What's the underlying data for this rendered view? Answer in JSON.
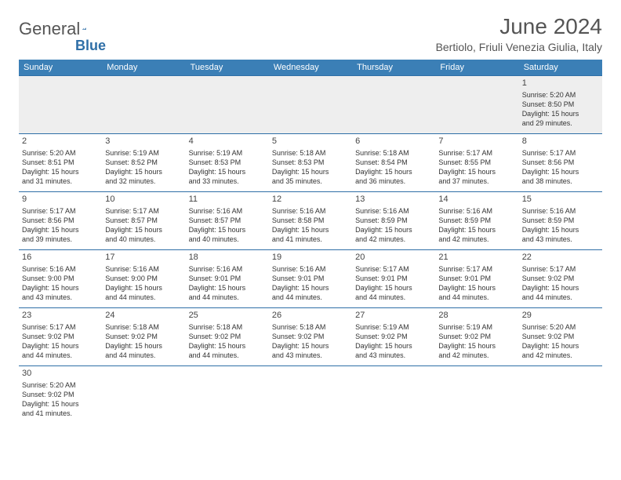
{
  "header": {
    "logo_part1": "General",
    "logo_part2": "Blue",
    "month_title": "June 2024",
    "location": "Bertiolo, Friuli Venezia Giulia, Italy"
  },
  "colors": {
    "header_bg": "#3b7fb6",
    "border": "#2f6fa7",
    "empty_bg": "#eeeeee",
    "text": "#333333"
  },
  "day_headers": [
    "Sunday",
    "Monday",
    "Tuesday",
    "Wednesday",
    "Thursday",
    "Friday",
    "Saturday"
  ],
  "weeks": [
    [
      null,
      null,
      null,
      null,
      null,
      null,
      {
        "d": "1",
        "sr": "Sunrise: 5:20 AM",
        "ss": "Sunset: 8:50 PM",
        "dl1": "Daylight: 15 hours",
        "dl2": "and 29 minutes."
      }
    ],
    [
      {
        "d": "2",
        "sr": "Sunrise: 5:20 AM",
        "ss": "Sunset: 8:51 PM",
        "dl1": "Daylight: 15 hours",
        "dl2": "and 31 minutes."
      },
      {
        "d": "3",
        "sr": "Sunrise: 5:19 AM",
        "ss": "Sunset: 8:52 PM",
        "dl1": "Daylight: 15 hours",
        "dl2": "and 32 minutes."
      },
      {
        "d": "4",
        "sr": "Sunrise: 5:19 AM",
        "ss": "Sunset: 8:53 PM",
        "dl1": "Daylight: 15 hours",
        "dl2": "and 33 minutes."
      },
      {
        "d": "5",
        "sr": "Sunrise: 5:18 AM",
        "ss": "Sunset: 8:53 PM",
        "dl1": "Daylight: 15 hours",
        "dl2": "and 35 minutes."
      },
      {
        "d": "6",
        "sr": "Sunrise: 5:18 AM",
        "ss": "Sunset: 8:54 PM",
        "dl1": "Daylight: 15 hours",
        "dl2": "and 36 minutes."
      },
      {
        "d": "7",
        "sr": "Sunrise: 5:17 AM",
        "ss": "Sunset: 8:55 PM",
        "dl1": "Daylight: 15 hours",
        "dl2": "and 37 minutes."
      },
      {
        "d": "8",
        "sr": "Sunrise: 5:17 AM",
        "ss": "Sunset: 8:56 PM",
        "dl1": "Daylight: 15 hours",
        "dl2": "and 38 minutes."
      }
    ],
    [
      {
        "d": "9",
        "sr": "Sunrise: 5:17 AM",
        "ss": "Sunset: 8:56 PM",
        "dl1": "Daylight: 15 hours",
        "dl2": "and 39 minutes."
      },
      {
        "d": "10",
        "sr": "Sunrise: 5:17 AM",
        "ss": "Sunset: 8:57 PM",
        "dl1": "Daylight: 15 hours",
        "dl2": "and 40 minutes."
      },
      {
        "d": "11",
        "sr": "Sunrise: 5:16 AM",
        "ss": "Sunset: 8:57 PM",
        "dl1": "Daylight: 15 hours",
        "dl2": "and 40 minutes."
      },
      {
        "d": "12",
        "sr": "Sunrise: 5:16 AM",
        "ss": "Sunset: 8:58 PM",
        "dl1": "Daylight: 15 hours",
        "dl2": "and 41 minutes."
      },
      {
        "d": "13",
        "sr": "Sunrise: 5:16 AM",
        "ss": "Sunset: 8:59 PM",
        "dl1": "Daylight: 15 hours",
        "dl2": "and 42 minutes."
      },
      {
        "d": "14",
        "sr": "Sunrise: 5:16 AM",
        "ss": "Sunset: 8:59 PM",
        "dl1": "Daylight: 15 hours",
        "dl2": "and 42 minutes."
      },
      {
        "d": "15",
        "sr": "Sunrise: 5:16 AM",
        "ss": "Sunset: 8:59 PM",
        "dl1": "Daylight: 15 hours",
        "dl2": "and 43 minutes."
      }
    ],
    [
      {
        "d": "16",
        "sr": "Sunrise: 5:16 AM",
        "ss": "Sunset: 9:00 PM",
        "dl1": "Daylight: 15 hours",
        "dl2": "and 43 minutes."
      },
      {
        "d": "17",
        "sr": "Sunrise: 5:16 AM",
        "ss": "Sunset: 9:00 PM",
        "dl1": "Daylight: 15 hours",
        "dl2": "and 44 minutes."
      },
      {
        "d": "18",
        "sr": "Sunrise: 5:16 AM",
        "ss": "Sunset: 9:01 PM",
        "dl1": "Daylight: 15 hours",
        "dl2": "and 44 minutes."
      },
      {
        "d": "19",
        "sr": "Sunrise: 5:16 AM",
        "ss": "Sunset: 9:01 PM",
        "dl1": "Daylight: 15 hours",
        "dl2": "and 44 minutes."
      },
      {
        "d": "20",
        "sr": "Sunrise: 5:17 AM",
        "ss": "Sunset: 9:01 PM",
        "dl1": "Daylight: 15 hours",
        "dl2": "and 44 minutes."
      },
      {
        "d": "21",
        "sr": "Sunrise: 5:17 AM",
        "ss": "Sunset: 9:01 PM",
        "dl1": "Daylight: 15 hours",
        "dl2": "and 44 minutes."
      },
      {
        "d": "22",
        "sr": "Sunrise: 5:17 AM",
        "ss": "Sunset: 9:02 PM",
        "dl1": "Daylight: 15 hours",
        "dl2": "and 44 minutes."
      }
    ],
    [
      {
        "d": "23",
        "sr": "Sunrise: 5:17 AM",
        "ss": "Sunset: 9:02 PM",
        "dl1": "Daylight: 15 hours",
        "dl2": "and 44 minutes."
      },
      {
        "d": "24",
        "sr": "Sunrise: 5:18 AM",
        "ss": "Sunset: 9:02 PM",
        "dl1": "Daylight: 15 hours",
        "dl2": "and 44 minutes."
      },
      {
        "d": "25",
        "sr": "Sunrise: 5:18 AM",
        "ss": "Sunset: 9:02 PM",
        "dl1": "Daylight: 15 hours",
        "dl2": "and 44 minutes."
      },
      {
        "d": "26",
        "sr": "Sunrise: 5:18 AM",
        "ss": "Sunset: 9:02 PM",
        "dl1": "Daylight: 15 hours",
        "dl2": "and 43 minutes."
      },
      {
        "d": "27",
        "sr": "Sunrise: 5:19 AM",
        "ss": "Sunset: 9:02 PM",
        "dl1": "Daylight: 15 hours",
        "dl2": "and 43 minutes."
      },
      {
        "d": "28",
        "sr": "Sunrise: 5:19 AM",
        "ss": "Sunset: 9:02 PM",
        "dl1": "Daylight: 15 hours",
        "dl2": "and 42 minutes."
      },
      {
        "d": "29",
        "sr": "Sunrise: 5:20 AM",
        "ss": "Sunset: 9:02 PM",
        "dl1": "Daylight: 15 hours",
        "dl2": "and 42 minutes."
      }
    ],
    [
      {
        "d": "30",
        "sr": "Sunrise: 5:20 AM",
        "ss": "Sunset: 9:02 PM",
        "dl1": "Daylight: 15 hours",
        "dl2": "and 41 minutes."
      },
      null,
      null,
      null,
      null,
      null,
      null
    ]
  ]
}
